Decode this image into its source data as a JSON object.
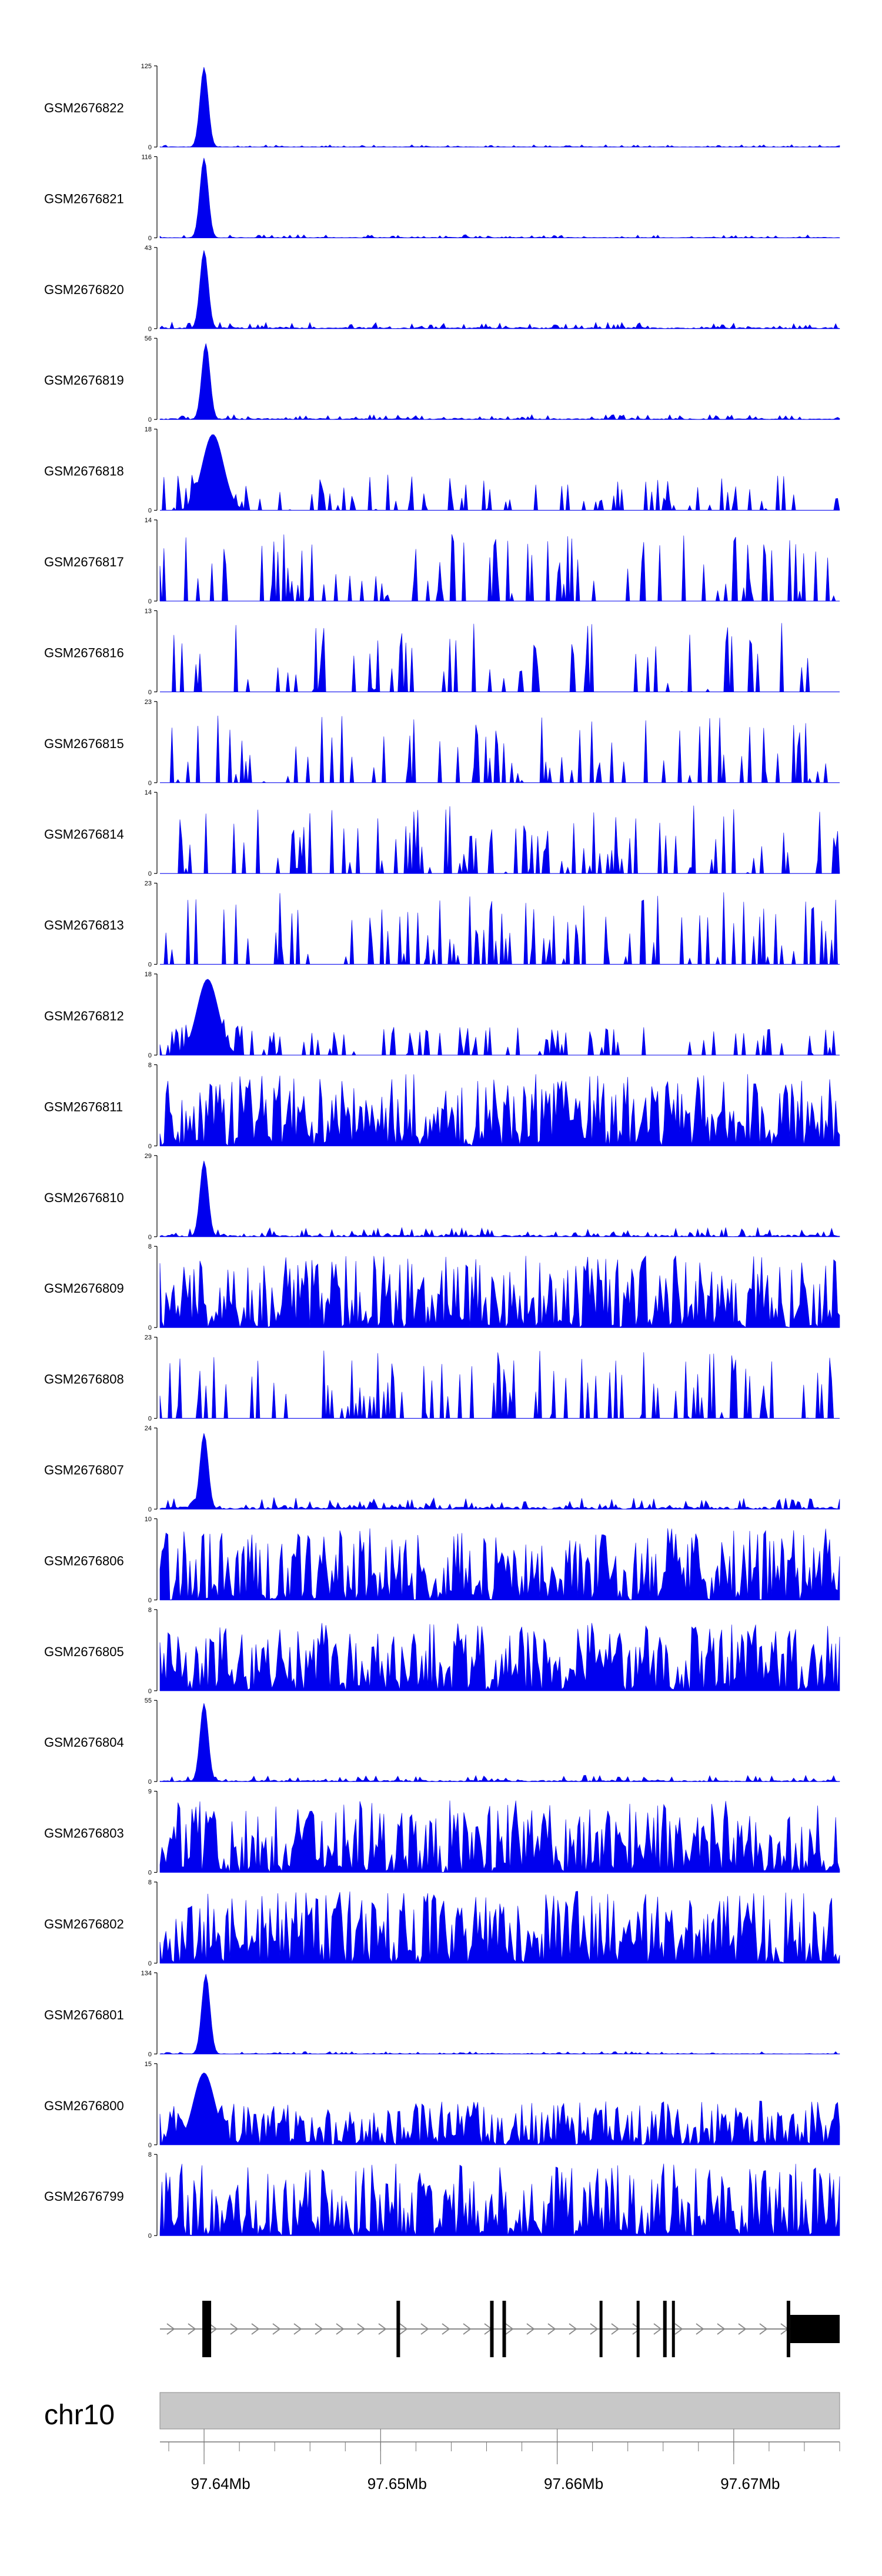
{
  "chart_data": {
    "type": "area",
    "chromosome": "chr10",
    "xlim_mb": [
      97.6375,
      97.676
    ],
    "x_ticks": [
      {
        "value": 97.64,
        "label": "97.64Mb"
      },
      {
        "value": 97.65,
        "label": "97.65Mb"
      },
      {
        "value": 97.66,
        "label": "97.66Mb"
      },
      {
        "value": 97.67,
        "label": "97.67Mb"
      }
    ],
    "fill_color": "#0000ee",
    "tracks": [
      {
        "name": "GSM2676822",
        "ymin_label": "0",
        "ymax": 125,
        "ymax_label": "125",
        "peak_mb": 97.64,
        "peak": 1.0,
        "base": 0.03,
        "style": "peak",
        "seed": 11
      },
      {
        "name": "GSM2676821",
        "ymin_label": "0",
        "ymax": 116,
        "ymax_label": "116",
        "peak_mb": 97.64,
        "peak": 1.0,
        "base": 0.04,
        "style": "peak",
        "seed": 12
      },
      {
        "name": "GSM2676820",
        "ymin_label": "0",
        "ymax": 43,
        "ymax_label": "43",
        "peak_mb": 97.64,
        "peak": 0.98,
        "base": 0.08,
        "style": "peak",
        "seed": 13
      },
      {
        "name": "GSM2676819",
        "ymin_label": "0",
        "ymax": 56,
        "ymax_label": "56",
        "peak_mb": 97.6401,
        "peak": 0.95,
        "base": 0.06,
        "style": "peak",
        "seed": 14
      },
      {
        "name": "GSM2676818",
        "ymin_label": "0",
        "ymax": 18,
        "ymax_label": "18",
        "peak_mb": 97.6405,
        "peak": 0.95,
        "base": 0.45,
        "style": "sparse",
        "seed": 15
      },
      {
        "name": "GSM2676817",
        "ymin_label": "0",
        "ymax": 14,
        "ymax_label": "14",
        "peak_mb": null,
        "peak": 0,
        "base": 0.85,
        "style": "sparse",
        "seed": 16
      },
      {
        "name": "GSM2676816",
        "ymin_label": "0",
        "ymax": 13,
        "ymax_label": "13",
        "peak_mb": null,
        "peak": 0,
        "base": 0.9,
        "style": "sparse",
        "seed": 17
      },
      {
        "name": "GSM2676815",
        "ymin_label": "0",
        "ymax": 23,
        "ymax_label": "23",
        "peak_mb": null,
        "peak": 0,
        "base": 0.85,
        "style": "sparse",
        "seed": 18
      },
      {
        "name": "GSM2676814",
        "ymin_label": "0",
        "ymax": 14,
        "ymax_label": "14",
        "peak_mb": null,
        "peak": 0,
        "base": 0.85,
        "style": "sparse",
        "seed": 19
      },
      {
        "name": "GSM2676813",
        "ymin_label": "0",
        "ymax": 23,
        "ymax_label": "23",
        "peak_mb": null,
        "peak": 0,
        "base": 0.9,
        "style": "sparse",
        "seed": 20
      },
      {
        "name": "GSM2676812",
        "ymin_label": "0",
        "ymax": 18,
        "ymax_label": "18",
        "peak_mb": 97.6402,
        "peak": 0.95,
        "base": 0.35,
        "style": "sparse",
        "seed": 21
      },
      {
        "name": "GSM2676811",
        "ymin_label": "0",
        "ymax": 8,
        "ymax_label": "8",
        "peak_mb": null,
        "peak": 0,
        "base": 0.9,
        "style": "dense",
        "seed": 22
      },
      {
        "name": "GSM2676810",
        "ymin_label": "0",
        "ymax": 29,
        "ymax_label": "29",
        "peak_mb": 97.64,
        "peak": 0.95,
        "base": 0.12,
        "style": "peak",
        "seed": 23
      },
      {
        "name": "GSM2676809",
        "ymin_label": "0",
        "ymax": 8,
        "ymax_label": "8",
        "peak_mb": null,
        "peak": 0,
        "base": 0.9,
        "style": "dense",
        "seed": 24
      },
      {
        "name": "GSM2676808",
        "ymin_label": "0",
        "ymax": 23,
        "ymax_label": "23",
        "peak_mb": null,
        "peak": 0,
        "base": 0.85,
        "style": "sparse",
        "seed": 25
      },
      {
        "name": "GSM2676807",
        "ymin_label": "0",
        "ymax": 24,
        "ymax_label": "24",
        "peak_mb": 97.64,
        "peak": 0.95,
        "base": 0.15,
        "style": "peak",
        "seed": 26
      },
      {
        "name": "GSM2676806",
        "ymin_label": "0",
        "ymax": 10,
        "ymax_label": "10",
        "peak_mb": null,
        "peak": 0,
        "base": 0.9,
        "style": "dense",
        "seed": 27
      },
      {
        "name": "GSM2676805",
        "ymin_label": "0",
        "ymax": 8,
        "ymax_label": "8",
        "peak_mb": null,
        "peak": 0,
        "base": 0.85,
        "style": "dense",
        "seed": 28
      },
      {
        "name": "GSM2676804",
        "ymin_label": "0",
        "ymax": 55,
        "ymax_label": "55",
        "peak_mb": 97.64,
        "peak": 0.98,
        "base": 0.08,
        "style": "peak",
        "seed": 29
      },
      {
        "name": "GSM2676803",
        "ymin_label": "0",
        "ymax": 9,
        "ymax_label": "9",
        "peak_mb": null,
        "peak": 0,
        "base": 0.9,
        "style": "dense",
        "seed": 30
      },
      {
        "name": "GSM2676802",
        "ymin_label": "0",
        "ymax": 8,
        "ymax_label": "8",
        "peak_mb": null,
        "peak": 0,
        "base": 0.9,
        "style": "dense",
        "seed": 31
      },
      {
        "name": "GSM2676801",
        "ymin_label": "0",
        "ymax": 134,
        "ymax_label": "134",
        "peak_mb": 97.6401,
        "peak": 1.0,
        "base": 0.03,
        "style": "peak",
        "seed": 32
      },
      {
        "name": "GSM2676800",
        "ymin_label": "0",
        "ymax": 15,
        "ymax_label": "15",
        "peak_mb": 97.64,
        "peak": 0.9,
        "base": 0.55,
        "style": "dense",
        "seed": 33
      },
      {
        "name": "GSM2676799",
        "ymin_label": "0",
        "ymax": 8,
        "ymax_label": "8",
        "peak_mb": null,
        "peak": 0,
        "base": 0.9,
        "style": "dense",
        "seed": 34
      }
    ],
    "gene_model": {
      "strand": "+",
      "exons_mb": [
        [
          97.6399,
          97.6404
        ],
        [
          97.6509,
          97.6511
        ],
        [
          97.6562,
          97.6564
        ],
        [
          97.6569,
          97.6571
        ],
        [
          97.6624,
          97.6625
        ],
        [
          97.6645,
          97.6646
        ],
        [
          97.666,
          97.6662
        ],
        [
          97.6665,
          97.6666
        ],
        [
          97.673,
          97.6732
        ]
      ],
      "utr_mb": [
        97.6732,
        97.676
      ]
    }
  }
}
